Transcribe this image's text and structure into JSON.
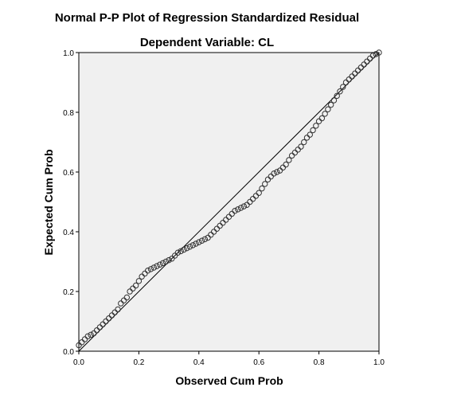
{
  "chart_data": {
    "type": "scatter",
    "title": "Normal P-P Plot of Regression Standardized Residual",
    "subtitle": "Dependent Variable: CL",
    "xlabel": "Observed Cum Prob",
    "ylabel": "Expected Cum Prob",
    "xlim": [
      0,
      1
    ],
    "ylim": [
      0,
      1
    ],
    "x_ticks": [
      "0.0",
      "0.2",
      "0.4",
      "0.6",
      "0.8",
      "1.0"
    ],
    "y_ticks": [
      "0.0",
      "0.2",
      "0.4",
      "0.6",
      "0.8",
      "1.0"
    ],
    "grid": false,
    "legend": "none",
    "reference_line": [
      [
        0,
        0
      ],
      [
        1,
        1
      ]
    ],
    "colors": {
      "plot_background": "#f0f0f0",
      "marker_stroke": "#333333",
      "line": "#000000"
    },
    "series": [
      {
        "x": [
          0.0,
          0.01,
          0.02,
          0.03,
          0.04,
          0.05,
          0.06,
          0.07,
          0.08,
          0.09,
          0.1,
          0.11,
          0.12,
          0.13,
          0.14,
          0.15,
          0.16,
          0.17,
          0.18,
          0.19,
          0.2,
          0.21,
          0.22,
          0.23,
          0.24,
          0.25,
          0.26,
          0.27,
          0.28,
          0.29,
          0.3,
          0.31,
          0.32,
          0.33,
          0.34,
          0.35,
          0.36,
          0.37,
          0.38,
          0.39,
          0.4,
          0.41,
          0.42,
          0.43,
          0.44,
          0.45,
          0.46,
          0.47,
          0.48,
          0.49,
          0.5,
          0.51,
          0.52,
          0.53,
          0.54,
          0.55,
          0.56,
          0.57,
          0.58,
          0.59,
          0.6,
          0.61,
          0.62,
          0.63,
          0.64,
          0.65,
          0.66,
          0.67,
          0.68,
          0.69,
          0.7,
          0.71,
          0.72,
          0.73,
          0.74,
          0.75,
          0.76,
          0.77,
          0.78,
          0.79,
          0.8,
          0.81,
          0.82,
          0.83,
          0.84,
          0.85,
          0.86,
          0.87,
          0.88,
          0.89,
          0.9,
          0.91,
          0.92,
          0.93,
          0.94,
          0.95,
          0.96,
          0.97,
          0.98,
          0.99,
          1.0
        ],
        "y": [
          0.02,
          0.03,
          0.04,
          0.05,
          0.055,
          0.06,
          0.07,
          0.08,
          0.09,
          0.1,
          0.11,
          0.12,
          0.13,
          0.14,
          0.16,
          0.17,
          0.18,
          0.2,
          0.21,
          0.22,
          0.235,
          0.25,
          0.26,
          0.27,
          0.275,
          0.28,
          0.285,
          0.29,
          0.295,
          0.3,
          0.305,
          0.31,
          0.32,
          0.33,
          0.335,
          0.34,
          0.345,
          0.35,
          0.355,
          0.36,
          0.365,
          0.37,
          0.375,
          0.38,
          0.39,
          0.4,
          0.41,
          0.42,
          0.43,
          0.44,
          0.45,
          0.46,
          0.47,
          0.475,
          0.48,
          0.485,
          0.49,
          0.5,
          0.51,
          0.52,
          0.53,
          0.545,
          0.56,
          0.575,
          0.585,
          0.595,
          0.6,
          0.605,
          0.615,
          0.625,
          0.64,
          0.655,
          0.665,
          0.675,
          0.685,
          0.7,
          0.715,
          0.725,
          0.74,
          0.755,
          0.77,
          0.78,
          0.795,
          0.81,
          0.825,
          0.84,
          0.855,
          0.87,
          0.885,
          0.9,
          0.91,
          0.92,
          0.93,
          0.94,
          0.95,
          0.96,
          0.97,
          0.98,
          0.99,
          0.995,
          1.0
        ]
      }
    ]
  }
}
